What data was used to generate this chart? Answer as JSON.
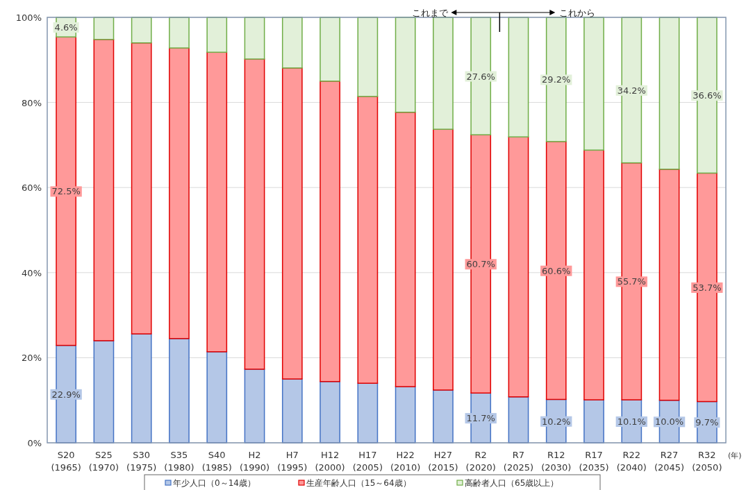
{
  "chart_data": {
    "type": "bar",
    "stacked": true,
    "categories": [
      "S20 (1965)",
      "S25 (1970)",
      "S30 (1975)",
      "S35 (1980)",
      "S40 (1985)",
      "H2 (1990)",
      "H7 (1995)",
      "H12 (2000)",
      "H17 (2005)",
      "H22 (2010)",
      "H27 (2015)",
      "R2 (2020)",
      "R7 (2025)",
      "R12 (2030)",
      "R17 (2035)",
      "R22 (2040)",
      "R27 (2045)",
      "R32 (2050)"
    ],
    "xlabel": "(年)",
    "series": [
      {
        "name": "年少人口（0～14歳）",
        "color": "#b4c7e7",
        "values": [
          22.9,
          24.0,
          25.6,
          24.5,
          21.4,
          17.3,
          15.0,
          14.4,
          14.0,
          13.2,
          12.4,
          11.7,
          10.8,
          10.2,
          10.1,
          10.1,
          10.0,
          9.7
        ],
        "value_labels": [
          "22.9%",
          null,
          null,
          null,
          null,
          null,
          null,
          null,
          null,
          null,
          null,
          "11.7%",
          null,
          "10.2%",
          null,
          "10.1%",
          "10.0%",
          "9.7%"
        ]
      },
      {
        "name": "生産年齢人口（15～64歳）",
        "color": "#ff9999",
        "values": [
          72.5,
          70.8,
          68.4,
          68.3,
          70.4,
          72.9,
          73.1,
          70.6,
          67.4,
          64.5,
          61.3,
          60.7,
          61.1,
          60.6,
          58.7,
          55.7,
          54.3,
          53.7
        ],
        "value_labels": [
          "72.5%",
          null,
          null,
          null,
          null,
          null,
          null,
          null,
          null,
          null,
          null,
          "60.7%",
          null,
          "60.6%",
          null,
          "55.7%",
          null,
          "53.7%"
        ]
      },
      {
        "name": "高齢者人口（65歳以上）",
        "color": "#e2f0d9",
        "values": [
          4.6,
          5.2,
          6.0,
          7.2,
          8.2,
          9.8,
          11.9,
          15.0,
          18.6,
          22.3,
          26.3,
          27.6,
          28.1,
          29.2,
          31.2,
          34.2,
          35.7,
          36.6
        ],
        "value_labels": [
          "4.6%",
          null,
          null,
          null,
          null,
          null,
          null,
          null,
          null,
          null,
          null,
          "27.6%",
          null,
          "29.2%",
          null,
          "34.2%",
          null,
          "36.6%"
        ]
      }
    ],
    "ylim": [
      0,
      100
    ],
    "yticks": [
      {
        "value": 0,
        "label": "0%"
      },
      {
        "value": 20,
        "label": "20%"
      },
      {
        "value": 40,
        "label": "40%"
      },
      {
        "value": 60,
        "label": "60%"
      },
      {
        "value": 80,
        "label": "80%"
      },
      {
        "value": 100,
        "label": "100%"
      }
    ],
    "grid": "y",
    "legend": "bottom",
    "annotations": [
      "これまで",
      "これから"
    ]
  }
}
